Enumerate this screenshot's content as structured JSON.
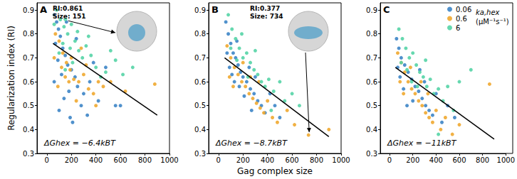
{
  "chart_data": [
    {
      "type": "scatter",
      "panel": "A",
      "ylabel": "Regularization index (RI)",
      "xlim": [
        -80,
        1000
      ],
      "xticks": [
        0,
        200,
        400,
        600,
        800,
        1000
      ],
      "ylim": [
        0.3,
        0.93
      ],
      "yticks": [
        0.3,
        0.4,
        0.5,
        0.6,
        0.7,
        0.8,
        0.9
      ],
      "grid": false,
      "energy_label": "ΔGhex = −6.4kBT",
      "callout": {
        "lines": [
          "RI:0.861",
          "Size: 151"
        ],
        "point": [
          151,
          0.861
        ]
      },
      "fit": {
        "x": [
          50,
          900
        ],
        "values": [
          0.76,
          0.46
        ]
      },
      "series": [
        {
          "name": "0.06",
          "color": "#3d85c6",
          "x": [
            60,
            80,
            95,
            110,
            70,
            130,
            150,
            90,
            170,
            200,
            120,
            230,
            60,
            250,
            180,
            300,
            140,
            280,
            100,
            330,
            210,
            350,
            420,
            480,
            560,
            600,
            160,
            240,
            190,
            380
          ],
          "values": [
            0.88,
            0.85,
            0.82,
            0.79,
            0.76,
            0.74,
            0.71,
            0.69,
            0.67,
            0.65,
            0.63,
            0.62,
            0.6,
            0.58,
            0.56,
            0.55,
            0.53,
            0.5,
            0.48,
            0.46,
            0.43,
            0.6,
            0.52,
            0.66,
            0.5,
            0.5,
            0.85,
            0.78,
            0.45,
            0.68
          ]
        },
        {
          "name": "0.6",
          "color": "#f0a830",
          "x": [
            70,
            100,
            130,
            160,
            190,
            220,
            260,
            90,
            300,
            340,
            120,
            200,
            380,
            240,
            150,
            420,
            460,
            520,
            640,
            880,
            320,
            280,
            60,
            400,
            180
          ],
          "values": [
            0.8,
            0.77,
            0.72,
            0.68,
            0.65,
            0.61,
            0.6,
            0.58,
            0.63,
            0.57,
            0.66,
            0.7,
            0.55,
            0.52,
            0.62,
            0.6,
            0.58,
            0.6,
            0.56,
            0.59,
            0.67,
            0.74,
            0.7,
            0.5,
            0.6
          ]
        },
        {
          "name": "6",
          "color": "#55d4a6",
          "x": [
            80,
            110,
            140,
            170,
            200,
            230,
            260,
            290,
            130,
            100,
            320,
            360,
            400,
            440,
            480,
            520,
            560,
            620,
            700,
            210,
            150,
            250,
            340,
            60,
            190,
            151
          ],
          "values": [
            0.9,
            0.86,
            0.83,
            0.8,
            0.84,
            0.77,
            0.73,
            0.7,
            0.76,
            0.72,
            0.75,
            0.71,
            0.66,
            0.62,
            0.64,
            0.73,
            0.69,
            0.63,
            0.66,
            0.68,
            0.65,
            0.81,
            0.79,
            0.84,
            0.74,
            0.861
          ]
        }
      ]
    },
    {
      "type": "scatter",
      "panel": "B",
      "xlabel": "Gag complex size",
      "xlim": [
        -80,
        1000
      ],
      "xticks": [
        0,
        200,
        400,
        600,
        800,
        1000
      ],
      "ylim": [
        0.3,
        0.93
      ],
      "yticks": [
        0.3,
        0.4,
        0.5,
        0.6,
        0.7,
        0.8,
        0.9
      ],
      "grid": false,
      "energy_label": "ΔGhex = −8.7kBT",
      "callout": {
        "lines": [
          "RI:0.377",
          "Size: 734"
        ],
        "point": [
          734,
          0.377
        ]
      },
      "fit": {
        "x": [
          50,
          900
        ],
        "values": [
          0.7,
          0.37
        ]
      },
      "series": [
        {
          "name": "0.06",
          "color": "#3d85c6",
          "x": [
            60,
            80,
            100,
            120,
            140,
            160,
            180,
            200,
            90,
            230,
            260,
            290,
            130,
            320,
            350,
            210,
            380,
            170,
            110,
            250,
            300,
            420,
            460,
            500,
            270,
            150,
            70
          ],
          "values": [
            0.85,
            0.8,
            0.76,
            0.72,
            0.7,
            0.67,
            0.64,
            0.62,
            0.66,
            0.6,
            0.57,
            0.55,
            0.6,
            0.52,
            0.5,
            0.54,
            0.47,
            0.58,
            0.63,
            0.66,
            0.62,
            0.55,
            0.5,
            0.45,
            0.48,
            0.77,
            0.72
          ]
        },
        {
          "name": "0.6",
          "color": "#f0a830",
          "x": [
            70,
            100,
            130,
            160,
            190,
            220,
            250,
            280,
            310,
            340,
            370,
            400,
            440,
            480,
            200,
            120,
            260,
            560,
            620,
            900,
            734,
            90,
            330
          ],
          "values": [
            0.75,
            0.7,
            0.66,
            0.63,
            0.6,
            0.58,
            0.55,
            0.53,
            0.51,
            0.49,
            0.47,
            0.52,
            0.45,
            0.43,
            0.68,
            0.58,
            0.62,
            0.48,
            0.42,
            0.4,
            0.377,
            0.62,
            0.6
          ]
        },
        {
          "name": "6",
          "color": "#55d4a6",
          "x": [
            80,
            110,
            140,
            170,
            200,
            230,
            260,
            290,
            320,
            350,
            380,
            410,
            450,
            500,
            540,
            150,
            240,
            100,
            300,
            600,
            660,
            190,
            430
          ],
          "values": [
            0.88,
            0.82,
            0.78,
            0.74,
            0.7,
            0.72,
            0.68,
            0.65,
            0.63,
            0.6,
            0.58,
            0.61,
            0.56,
            0.6,
            0.52,
            0.69,
            0.62,
            0.74,
            0.73,
            0.55,
            0.5,
            0.8,
            0.48
          ]
        }
      ]
    },
    {
      "type": "scatter",
      "panel": "C",
      "xlim": [
        -80,
        1000
      ],
      "xticks": [
        0,
        200,
        400,
        600,
        800,
        1000
      ],
      "ylim": [
        0.3,
        0.93
      ],
      "yticks": [
        0.3,
        0.4,
        0.5,
        0.6,
        0.7,
        0.8,
        0.9
      ],
      "grid": false,
      "legend": "upper right",
      "legend_title": [
        "ka,hex",
        "(μM⁻¹s⁻¹)"
      ],
      "energy_label": "ΔGhex = −11kBT",
      "fit": {
        "x": [
          50,
          900
        ],
        "values": [
          0.66,
          0.36
        ]
      },
      "series": [
        {
          "name": "0.06",
          "color": "#3d85c6",
          "x": [
            60,
            80,
            100,
            130,
            160,
            190,
            220,
            250,
            90,
            280,
            310,
            340,
            120,
            370,
            200,
            150,
            400,
            450,
            500,
            560,
            260,
            300,
            70
          ],
          "values": [
            0.78,
            0.74,
            0.7,
            0.67,
            0.64,
            0.61,
            0.58,
            0.56,
            0.62,
            0.53,
            0.5,
            0.48,
            0.57,
            0.46,
            0.52,
            0.5,
            0.55,
            0.43,
            0.5,
            0.45,
            0.65,
            0.6,
            0.66
          ]
        },
        {
          "name": "0.6",
          "color": "#f0a830",
          "x": [
            70,
            100,
            130,
            160,
            190,
            220,
            250,
            280,
            310,
            340,
            370,
            400,
            440,
            180,
            120,
            270,
            480,
            540,
            600,
            860,
            330,
            90
          ],
          "values": [
            0.72,
            0.68,
            0.64,
            0.6,
            0.57,
            0.55,
            0.52,
            0.5,
            0.47,
            0.45,
            0.43,
            0.48,
            0.4,
            0.66,
            0.55,
            0.6,
            0.45,
            0.38,
            0.42,
            0.59,
            0.55,
            0.6
          ]
        },
        {
          "name": "6",
          "color": "#55d4a6",
          "x": [
            80,
            110,
            140,
            170,
            200,
            230,
            260,
            290,
            320,
            350,
            380,
            420,
            460,
            500,
            550,
            600,
            150,
            240,
            100,
            700,
            310,
            190,
            420
          ],
          "values": [
            0.82,
            0.78,
            0.74,
            0.7,
            0.72,
            0.67,
            0.64,
            0.62,
            0.58,
            0.61,
            0.55,
            0.57,
            0.52,
            0.58,
            0.48,
            0.6,
            0.65,
            0.58,
            0.68,
            0.65,
            0.69,
            0.6,
            0.38
          ]
        }
      ]
    }
  ]
}
